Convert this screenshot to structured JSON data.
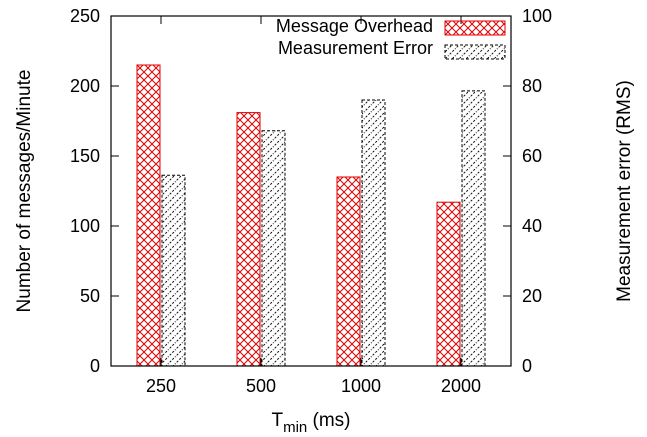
{
  "chart_data": {
    "type": "bar",
    "categories": [
      "250",
      "500",
      "1000",
      "2000"
    ],
    "xlabel_main": "T",
    "xlabel_sub": "min",
    "xlabel_unit": " (ms)",
    "ylabel": "Number of messages/Minute",
    "y2label": "Measurement error (RMS)",
    "ylim": [
      0,
      250
    ],
    "y2lim": [
      0,
      100
    ],
    "yticks": [
      0,
      50,
      100,
      150,
      200,
      250
    ],
    "y2ticks": [
      0,
      20,
      40,
      60,
      80,
      100
    ],
    "legend_position": "top-right",
    "grid": false,
    "series": [
      {
        "name": "Message Overhead",
        "axis": "left",
        "values": [
          215,
          181,
          135,
          117
        ],
        "color": "#e00000",
        "pattern": "crosshatch"
      },
      {
        "name": "Measurement Error",
        "axis": "right",
        "values": [
          54.5,
          67.2,
          76,
          78.6
        ],
        "color": "#000000",
        "pattern": "diagonal"
      }
    ]
  }
}
